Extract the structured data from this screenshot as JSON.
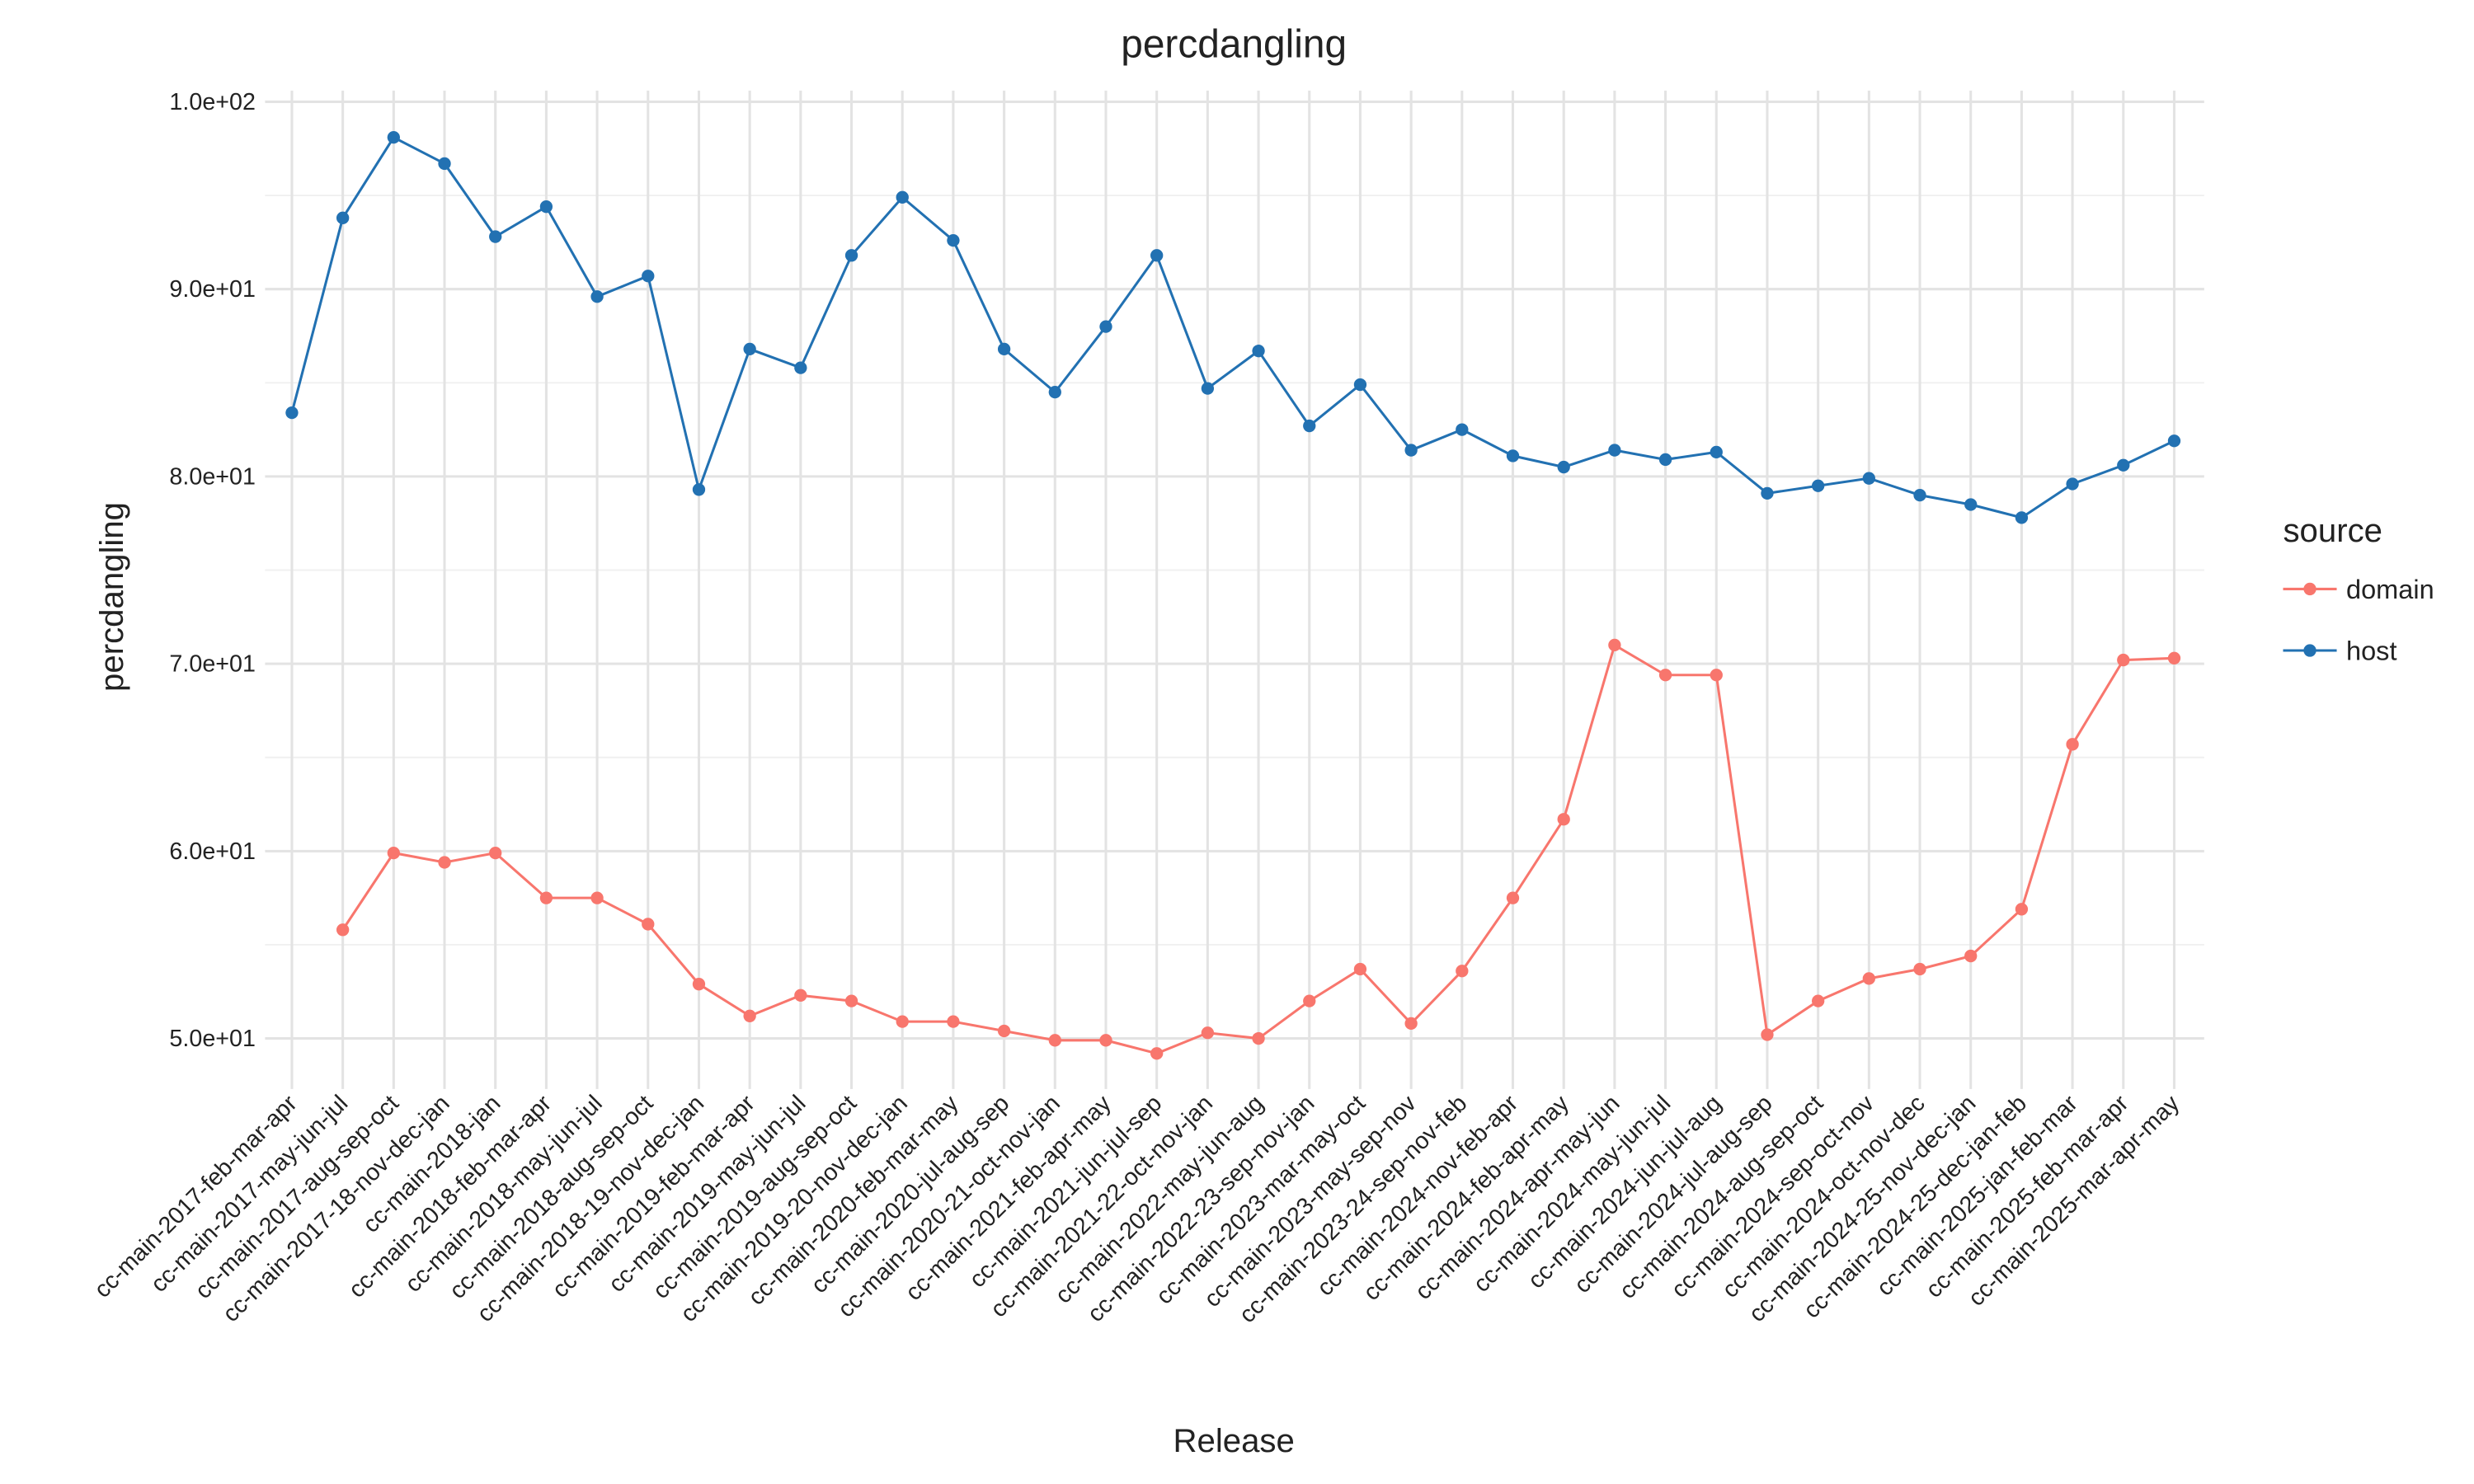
{
  "chart_data": {
    "type": "line",
    "title": "percdangling",
    "x_label": "Release",
    "y_label": "percdangling",
    "legend_title": "source",
    "legend": "right",
    "grid": true,
    "categories": [
      "cc-main-2017-feb-mar-apr",
      "cc-main-2017-may-jun-jul",
      "cc-main-2017-aug-sep-oct",
      "cc-main-2017-18-nov-dec-jan",
      "cc-main-2018-jan",
      "cc-main-2018-feb-mar-apr",
      "cc-main-2018-may-jun-jul",
      "cc-main-2018-aug-sep-oct",
      "cc-main-2018-19-nov-dec-jan",
      "cc-main-2019-feb-mar-apr",
      "cc-main-2019-may-jun-jul",
      "cc-main-2019-aug-sep-oct",
      "cc-main-2019-20-nov-dec-jan",
      "cc-main-2020-feb-mar-may",
      "cc-main-2020-jul-aug-sep",
      "cc-main-2020-21-oct-nov-jan",
      "cc-main-2021-feb-apr-may",
      "cc-main-2021-jun-jul-sep",
      "cc-main-2021-22-oct-nov-jan",
      "cc-main-2022-may-jun-aug",
      "cc-main-2022-23-sep-nov-jan",
      "cc-main-2023-mar-may-oct",
      "cc-main-2023-may-sep-nov",
      "cc-main-2023-24-sep-nov-feb",
      "cc-main-2024-nov-feb-apr",
      "cc-main-2024-feb-apr-may",
      "cc-main-2024-apr-may-jun",
      "cc-main-2024-may-jun-jul",
      "cc-main-2024-jun-jul-aug",
      "cc-main-2024-jul-aug-sep",
      "cc-main-2024-aug-sep-oct",
      "cc-main-2024-sep-oct-nov",
      "cc-main-2024-oct-nov-dec",
      "cc-main-2024-25-nov-dec-jan",
      "cc-main-2024-25-dec-jan-feb",
      "cc-main-2025-jan-feb-mar",
      "cc-main-2025-feb-mar-apr",
      "cc-main-2025-mar-apr-may"
    ],
    "series": [
      {
        "name": "domain",
        "color": "#F8766D",
        "values": [
          null,
          55.8,
          59.9,
          59.4,
          59.9,
          57.5,
          57.5,
          56.1,
          52.9,
          51.2,
          52.3,
          52.0,
          50.9,
          50.9,
          50.4,
          49.9,
          49.9,
          49.2,
          50.3,
          50.0,
          52.0,
          53.7,
          50.8,
          53.6,
          57.5,
          61.7,
          71.0,
          69.4,
          69.4,
          50.2,
          52.0,
          53.2,
          53.7,
          54.4,
          56.9,
          65.7,
          70.2,
          70.3
        ]
      },
      {
        "name": "host",
        "color": "#2271B2",
        "values": [
          83.4,
          93.8,
          98.1,
          96.7,
          92.8,
          94.4,
          89.6,
          90.7,
          79.3,
          86.8,
          85.8,
          91.8,
          94.9,
          92.6,
          86.8,
          84.5,
          88.0,
          91.8,
          84.7,
          86.7,
          82.7,
          84.9,
          81.4,
          82.5,
          81.1,
          80.5,
          81.4,
          80.9,
          81.3,
          79.1,
          79.5,
          79.9,
          79.0,
          78.5,
          77.8,
          79.6,
          80.6,
          81.9
        ]
      }
    ],
    "ylim": [
      47.3,
      100.6
    ],
    "yticks": [
      {
        "value": 50,
        "label": "5.0e+01"
      },
      {
        "value": 60,
        "label": "6.0e+01"
      },
      {
        "value": 70,
        "label": "7.0e+01"
      },
      {
        "value": 80,
        "label": "8.0e+01"
      },
      {
        "value": 90,
        "label": "9.0e+01"
      },
      {
        "value": 100,
        "label": "1.0e+02"
      }
    ]
  }
}
